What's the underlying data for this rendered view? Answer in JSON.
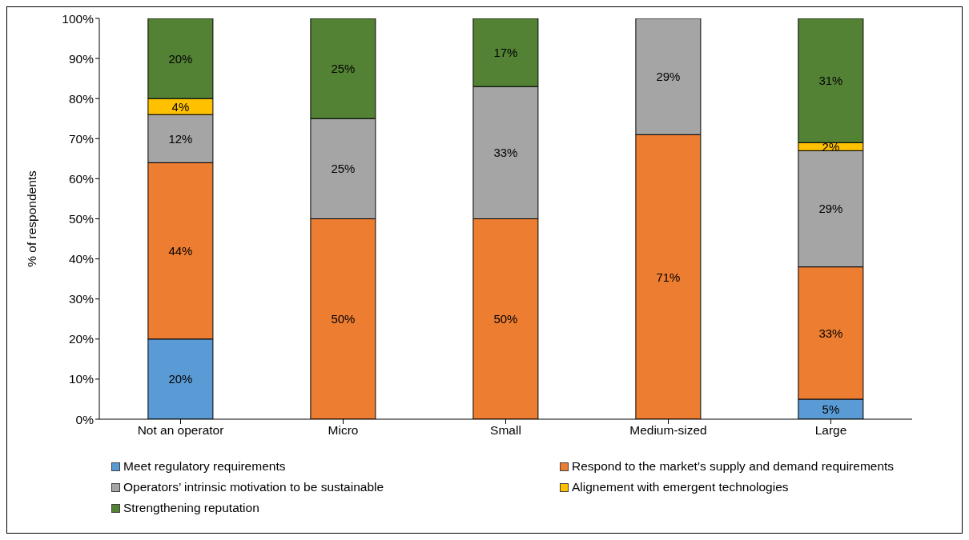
{
  "chart_data": {
    "type": "bar",
    "stacked": true,
    "ylabel": "% of respondents",
    "categories": [
      "Not an operator",
      "Micro",
      "Small",
      "Medium-sized",
      "Large"
    ],
    "series": [
      {
        "name": "Meet regulatory requirements",
        "color": "#5b9bd5",
        "values": [
          20,
          null,
          null,
          null,
          5
        ],
        "value_labels": [
          "20%",
          null,
          null,
          null,
          "5%"
        ]
      },
      {
        "name": "Respond to the market’s supply and demand requirements",
        "color": "#ed7d31",
        "values": [
          44,
          50,
          50,
          71,
          33
        ],
        "value_labels": [
          "44%",
          "50%",
          "50%",
          "71%",
          "33%"
        ]
      },
      {
        "name": "Operators’ intrinsic motivation to be sustainable",
        "color": "#a5a5a5",
        "values": [
          12,
          25,
          33,
          29,
          29
        ],
        "value_labels": [
          "12%",
          "25%",
          "33%",
          "29%",
          "29%"
        ]
      },
      {
        "name": "Alignement with emergent technologies",
        "color": "#ffc000",
        "values": [
          4,
          null,
          null,
          null,
          2
        ],
        "value_labels": [
          "4%",
          null,
          null,
          null,
          "2%"
        ]
      },
      {
        "name": "Strengthening reputation",
        "color": "#548235",
        "values": [
          20,
          25,
          17,
          null,
          31
        ],
        "value_labels": [
          "20%",
          "25%",
          "17%",
          null,
          "31%"
        ]
      }
    ],
    "ylim": [
      0,
      100
    ],
    "yticks": [
      {
        "value": 0,
        "label": "0%"
      },
      {
        "value": 10,
        "label": "10%"
      },
      {
        "value": 20,
        "label": "20%"
      },
      {
        "value": 30,
        "label": "30%"
      },
      {
        "value": 40,
        "label": "40%"
      },
      {
        "value": 50,
        "label": "50%"
      },
      {
        "value": 60,
        "label": "60%"
      },
      {
        "value": 70,
        "label": "70%"
      },
      {
        "value": 80,
        "label": "80%"
      },
      {
        "value": 90,
        "label": "90%"
      },
      {
        "value": 100,
        "label": "100%"
      }
    ],
    "legend": "bottom"
  }
}
